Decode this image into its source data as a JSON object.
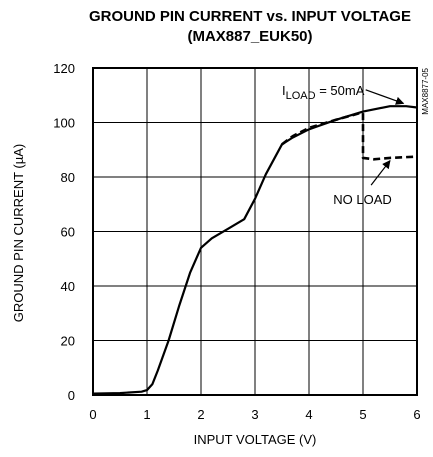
{
  "chart_data": {
    "type": "line",
    "title": "GROUND PIN CURRENT vs. INPUT VOLTAGE",
    "subtitle": "(MAX887_EUK50)",
    "figure_code": "MAX8877-05",
    "xlabel": "INPUT VOLTAGE (V)",
    "ylabel": "GROUND PIN CURRENT (µA)",
    "xlim": [
      0,
      6
    ],
    "ylim": [
      0,
      120
    ],
    "xticks": [
      0,
      1,
      2,
      3,
      4,
      5,
      6
    ],
    "yticks": [
      0,
      20,
      40,
      60,
      80,
      100,
      120
    ],
    "grid": true,
    "series": [
      {
        "name": "ILOAD = 50mA",
        "style": "solid",
        "x": [
          0,
          0.5,
          0.9,
          1.0,
          1.1,
          1.2,
          1.4,
          1.6,
          1.8,
          2.0,
          2.2,
          2.5,
          2.8,
          3.0,
          3.2,
          3.5,
          3.7,
          4.0,
          4.5,
          5.0,
          5.5,
          5.8,
          6.0
        ],
        "y": [
          0.5,
          0.7,
          1.2,
          1.8,
          4,
          9,
          20,
          33,
          45,
          54,
          57.5,
          61,
          64.5,
          72,
          81,
          92,
          94.5,
          97.5,
          101,
          104,
          106,
          106,
          105.5
        ]
      },
      {
        "name": "NO LOAD",
        "style": "dashed",
        "x": [
          3.5,
          3.7,
          4.0,
          4.5,
          4.95,
          5.0,
          5.0,
          5.2,
          5.5,
          6.0
        ],
        "y": [
          92,
          95,
          98,
          101,
          103.5,
          103.5,
          87,
          86.5,
          87,
          87.5
        ]
      }
    ],
    "annotations": [
      {
        "label_parts": [
          "I",
          "LOAD",
          " = 50mA"
        ],
        "text_x": 3.5,
        "text_y": 112,
        "arrow_from": [
          5.05,
          112
        ],
        "arrow_to": [
          5.75,
          107
        ]
      },
      {
        "label": "NO LOAD",
        "text_x": 4.45,
        "text_y": 72,
        "arrow_from": [
          5.15,
          77
        ],
        "arrow_to": [
          5.5,
          86
        ]
      }
    ]
  }
}
